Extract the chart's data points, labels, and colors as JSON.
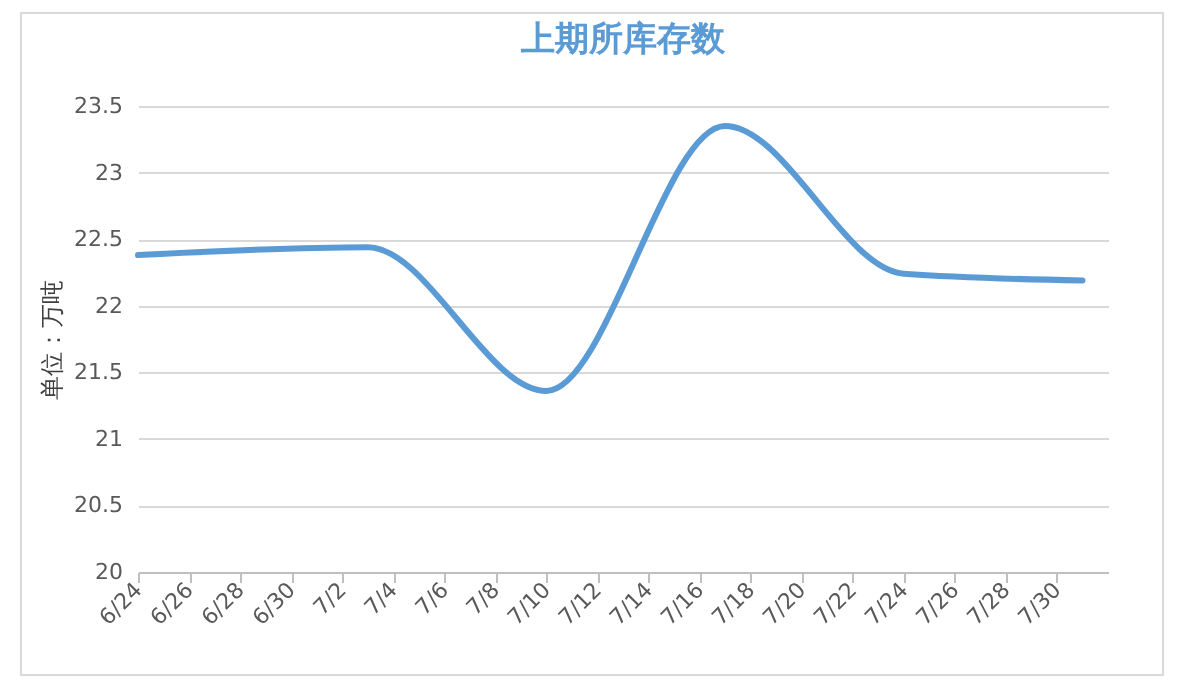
{
  "chart_data": {
    "type": "line",
    "title": "上期所库存数",
    "ylabel": "单位：万吨",
    "x": [
      "--06-24",
      "--07-03",
      "--07-10",
      "--07-17",
      "--07-24",
      "--07-31"
    ],
    "series": [
      {
        "color": "#5b9bd5",
        "values": [
          22.38,
          22.44,
          21.36,
          23.35,
          22.24,
          22.19
        ]
      }
    ],
    "xlim": [
      "--06-24",
      "--08-01"
    ],
    "xticks": [
      {
        "value": "--06-24",
        "label": "6/24"
      },
      {
        "value": "--06-26",
        "label": "6/26"
      },
      {
        "value": "--06-28",
        "label": "6/28"
      },
      {
        "value": "--06-30",
        "label": "6/30"
      },
      {
        "value": "--07-02",
        "label": "7/2"
      },
      {
        "value": "--07-04",
        "label": "7/4"
      },
      {
        "value": "--07-06",
        "label": "7/6"
      },
      {
        "value": "--07-08",
        "label": "7/8"
      },
      {
        "value": "--07-10",
        "label": "7/10"
      },
      {
        "value": "--07-12",
        "label": "7/12"
      },
      {
        "value": "--07-14",
        "label": "7/14"
      },
      {
        "value": "--07-16",
        "label": "7/16"
      },
      {
        "value": "--07-18",
        "label": "7/18"
      },
      {
        "value": "--07-20",
        "label": "7/20"
      },
      {
        "value": "--07-22",
        "label": "7/22"
      },
      {
        "value": "--07-24",
        "label": "7/24"
      },
      {
        "value": "--07-26",
        "label": "7/26"
      },
      {
        "value": "--07-28",
        "label": "7/28"
      },
      {
        "value": "--07-30",
        "label": "7/30"
      }
    ],
    "ylim": [
      20,
      23.5
    ],
    "yticks": [
      20,
      20.5,
      21,
      21.5,
      22,
      22.5,
      23,
      23.5
    ],
    "grid": "y",
    "marker": "none",
    "line_style": "solid"
  }
}
